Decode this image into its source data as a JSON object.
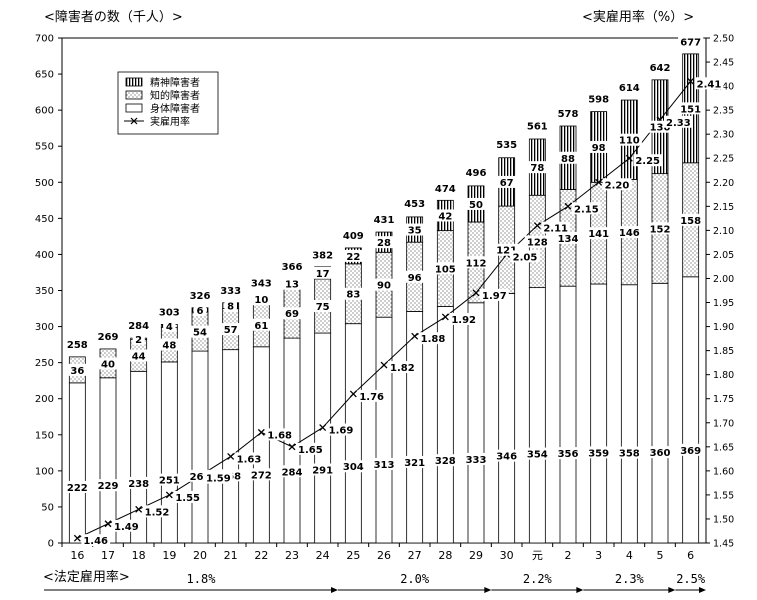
{
  "chart_data": {
    "type": "bar",
    "stacked": true,
    "left_axis_title": "<障害者の数（千人）>",
    "right_axis_title": "<実雇用率（%）>",
    "categories": [
      "16",
      "17",
      "18",
      "19",
      "20",
      "21",
      "22",
      "23",
      "24",
      "25",
      "26",
      "27",
      "28",
      "29",
      "30",
      "元",
      "2",
      "3",
      "4",
      "5",
      "6"
    ],
    "totals": [
      258,
      269,
      284,
      303,
      326,
      333,
      343,
      366,
      382,
      409,
      431,
      453,
      474,
      496,
      535,
      561,
      578,
      598,
      614,
      642,
      677
    ],
    "series": [
      {
        "name": "身体障害者",
        "pattern": "white",
        "values": [
          222,
          229,
          238,
          251,
          266,
          268,
          272,
          284,
          291,
          304,
          313,
          321,
          328,
          333,
          346,
          354,
          356,
          359,
          358,
          360,
          369
        ]
      },
      {
        "name": "知的障害者",
        "pattern": "dots",
        "values": [
          36,
          40,
          44,
          48,
          54,
          57,
          61,
          69,
          75,
          83,
          90,
          96,
          105,
          112,
          121,
          128,
          134,
          141,
          146,
          152,
          158
        ]
      },
      {
        "name": "精神障害者",
        "pattern": "vertical-lines",
        "values": [
          0,
          0,
          2,
          4,
          6,
          8,
          10,
          13,
          17,
          22,
          28,
          35,
          42,
          50,
          67,
          78,
          88,
          98,
          110,
          130,
          151
        ]
      }
    ],
    "line_series": {
      "name": "実雇用率",
      "axis": "right",
      "marker": "x",
      "values": [
        1.46,
        1.49,
        1.52,
        1.55,
        1.59,
        1.63,
        1.68,
        1.65,
        1.69,
        1.76,
        1.82,
        1.88,
        1.92,
        1.97,
        2.05,
        2.11,
        2.15,
        2.2,
        2.25,
        2.33,
        2.41
      ]
    },
    "left_ylim": [
      0,
      700
    ],
    "left_yticks": [
      0,
      50,
      100,
      150,
      200,
      250,
      300,
      350,
      400,
      450,
      500,
      550,
      600,
      650,
      700
    ],
    "right_ylim": [
      1.45,
      2.5
    ],
    "right_yticks": [
      "1.45",
      "1.50",
      "1.55",
      "1.60",
      "1.65",
      "1.70",
      "1.75",
      "1.80",
      "1.85",
      "1.90",
      "1.95",
      "2.00",
      "2.05",
      "2.10",
      "2.15",
      "2.20",
      "2.25",
      "2.30",
      "2.35",
      "2.40",
      "2.45",
      "2.50"
    ],
    "legend": {
      "position": "top-left",
      "entries": [
        "精神障害者",
        "知的障害者",
        "身体障害者",
        "実雇用率"
      ]
    },
    "grid": false,
    "statutory_rate_label": "<法定雇用率>",
    "statutory_rates": [
      {
        "label": "1.8%",
        "from": "16",
        "to": "24"
      },
      {
        "label": "2.0%",
        "from": "25",
        "to": "29"
      },
      {
        "label": "2.2%",
        "from": "30",
        "to": "2"
      },
      {
        "label": "2.3%",
        "from": "3",
        "to": "5"
      },
      {
        "label": "2.5%",
        "from": "6",
        "to": "6"
      }
    ]
  }
}
